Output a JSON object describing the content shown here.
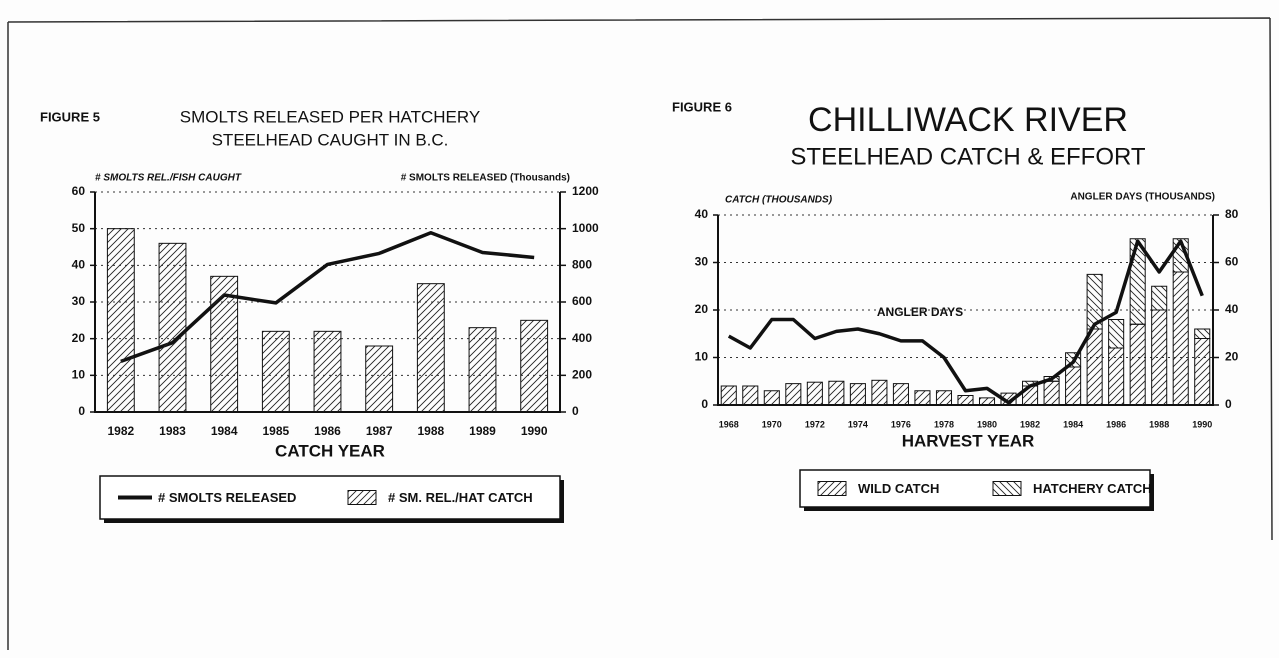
{
  "chart_data": [
    {
      "type": "combo",
      "label": "FIGURE 5",
      "title": "SMOLTS RELEASED PER HATCHERY",
      "subtitle": "STEELHEAD CAUGHT IN B.C.",
      "ylabel": "# SMOLTS REL./FISH CAUGHT",
      "y2label": "# SMOLTS RELEASED (Thousands)",
      "xlabel": "CATCH YEAR",
      "categories": [
        "1982",
        "1983",
        "1984",
        "1985",
        "1986",
        "1987",
        "1988",
        "1989",
        "1990"
      ],
      "series": [
        {
          "name": "# SMOLTS RELEASED",
          "color": "#111111",
          "axis": "y2",
          "values": [
            276,
            378,
            638,
            595,
            805,
            865,
            978,
            870,
            843
          ]
        },
        {
          "name": "# SM. REL./HAT CATCH",
          "color": "#111111",
          "pattern": "/",
          "values": [
            50,
            46,
            37,
            22,
            22,
            18,
            35,
            23,
            25
          ]
        }
      ],
      "ylim": [
        0,
        60
      ],
      "yticks": [
        0,
        10,
        20,
        30,
        40,
        50,
        60
      ],
      "y2lim": [
        0,
        1200
      ],
      "y2ticks": [
        0,
        200,
        400,
        600,
        800,
        1000,
        1200
      ],
      "grid": true,
      "stacked": false,
      "legend": "bottom"
    },
    {
      "type": "combo",
      "label": "FIGURE 6",
      "title": "CHILLIWACK RIVER",
      "subtitle": "STEELHEAD CATCH & EFFORT",
      "ylabel": "CATCH (THOUSANDS)",
      "y2label": "ANGLER DAYS (THOUSANDS)",
      "xlabel": "HARVEST YEAR",
      "categories": [
        "1968",
        null,
        "1970",
        null,
        "1972",
        null,
        "1974",
        null,
        "1976",
        null,
        "1978",
        null,
        "1980",
        null,
        "1982",
        null,
        "1984",
        null,
        "1986",
        null,
        "1988",
        null,
        "1990"
      ],
      "series": [
        {
          "name": "WILD CATCH",
          "color": "#111111",
          "pattern": "/",
          "values": [
            4,
            4,
            3,
            4.5,
            4.8,
            5,
            4.5,
            5.2,
            4.5,
            3,
            3,
            2,
            1.5,
            2.5,
            4,
            5,
            8,
            16,
            12,
            17,
            20,
            28,
            14
          ]
        },
        {
          "name": "HATCHERY CATCH",
          "color": "#111111",
          "pattern": "\\",
          "values": [
            0,
            0,
            0,
            0,
            0,
            0,
            0,
            0,
            0,
            0,
            0,
            0,
            0,
            0,
            1,
            1,
            3,
            11.5,
            6,
            18,
            5,
            7,
            2
          ]
        },
        {
          "color": "#111111",
          "axis": "y2",
          "values": [
            29,
            24,
            36,
            36,
            28,
            31,
            32,
            30,
            27,
            27,
            20,
            6,
            7,
            1,
            8,
            11,
            18,
            34,
            39,
            69,
            56,
            69,
            46
          ]
        }
      ],
      "annotations": [
        "ANGLER DAYS"
      ],
      "ylim": [
        0,
        40
      ],
      "yticks": [
        0,
        10,
        20,
        30,
        40
      ],
      "y2lim": [
        0,
        80
      ],
      "y2ticks": [
        0,
        20,
        40,
        60,
        80
      ],
      "grid": true,
      "stacked": true,
      "legend": "bottom"
    }
  ]
}
